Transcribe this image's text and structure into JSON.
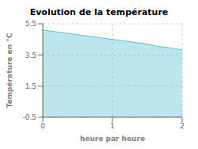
{
  "chart_data": {
    "type": "area",
    "title": "Evolution de la température",
    "xlabel": "heure par heure",
    "ylabel": "Température en °C",
    "x": [
      0.0,
      0.083,
      0.167,
      0.25,
      0.333,
      0.417,
      0.5,
      0.583,
      0.667,
      0.75,
      0.833,
      0.917,
      1.0,
      1.083,
      1.167,
      1.25,
      1.333,
      1.417,
      1.5,
      1.583,
      1.667,
      1.75,
      1.833,
      1.917,
      2.0
    ],
    "values": [
      5.1,
      5.05,
      5.0,
      4.95,
      4.9,
      4.85,
      4.8,
      4.75,
      4.7,
      4.65,
      4.6,
      4.55,
      4.5,
      4.45,
      4.4,
      4.35,
      4.3,
      4.25,
      4.2,
      4.1,
      4.05,
      4.0,
      3.95,
      3.9,
      3.8
    ],
    "color": "#5bbfd4",
    "xlim": [
      0,
      2
    ],
    "ylim": [
      -0.5,
      5.5
    ],
    "xticks": [
      0,
      1,
      2
    ],
    "yticks": [
      -0.5,
      1.5,
      3.5,
      5.5
    ],
    "grid": true
  }
}
